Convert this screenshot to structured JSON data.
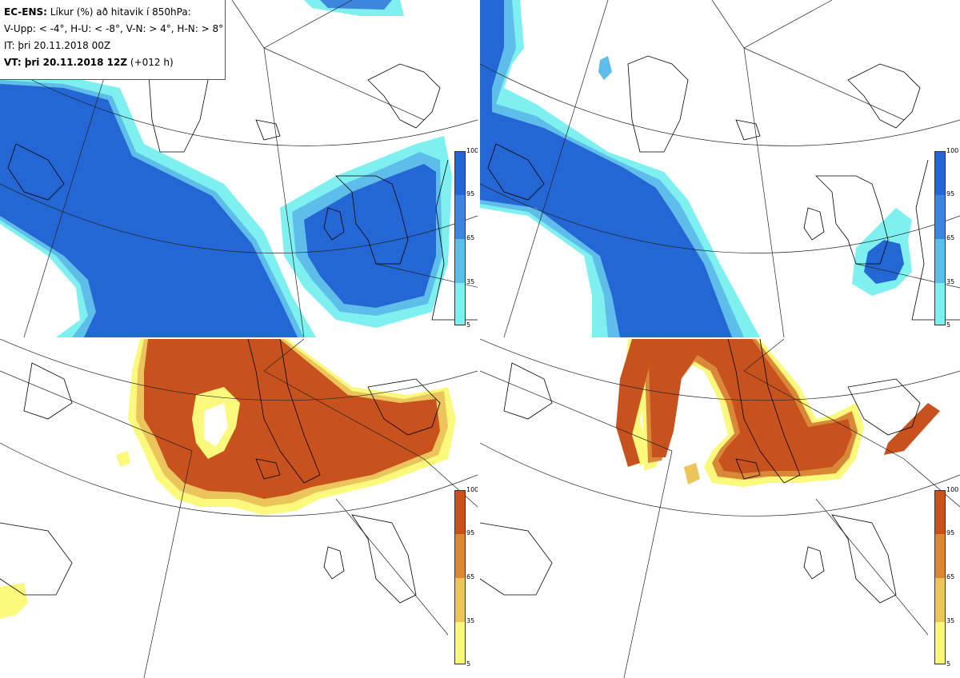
{
  "info": {
    "model": "EC-ENS:",
    "title": " Líkur (%) að hitavik í 850hPa:",
    "legend_line": "V-Upp: < -4°, H-U: < -8°, V-N: > 4°, H-N: > 8°",
    "it_line": "IT: þri 20.11.2018 00Z",
    "vt_label": "VT: þri 20.11.2018 12Z",
    "vt_offset": " (+012 h)"
  },
  "panels": [
    {
      "id": "top-left",
      "variable": "V-Upp",
      "threshold": "< -4°",
      "palette": "cold"
    },
    {
      "id": "top-right",
      "variable": "H-U",
      "threshold": "< -8°",
      "palette": "cold"
    },
    {
      "id": "bottom-left",
      "variable": "V-N",
      "threshold": "> 4°",
      "palette": "warm"
    },
    {
      "id": "bottom-right",
      "variable": "H-N",
      "threshold": "> 8°",
      "palette": "warm"
    }
  ],
  "colorbar": {
    "ticks": [
      "100",
      "95",
      "65",
      "35",
      "5"
    ],
    "cold_colors": [
      "#2467d4",
      "#3c86de",
      "#5ebde9",
      "#7ef0f0"
    ],
    "warm_colors": [
      "#c7521d",
      "#d98838",
      "#ebc55c",
      "#fbf97c"
    ]
  }
}
